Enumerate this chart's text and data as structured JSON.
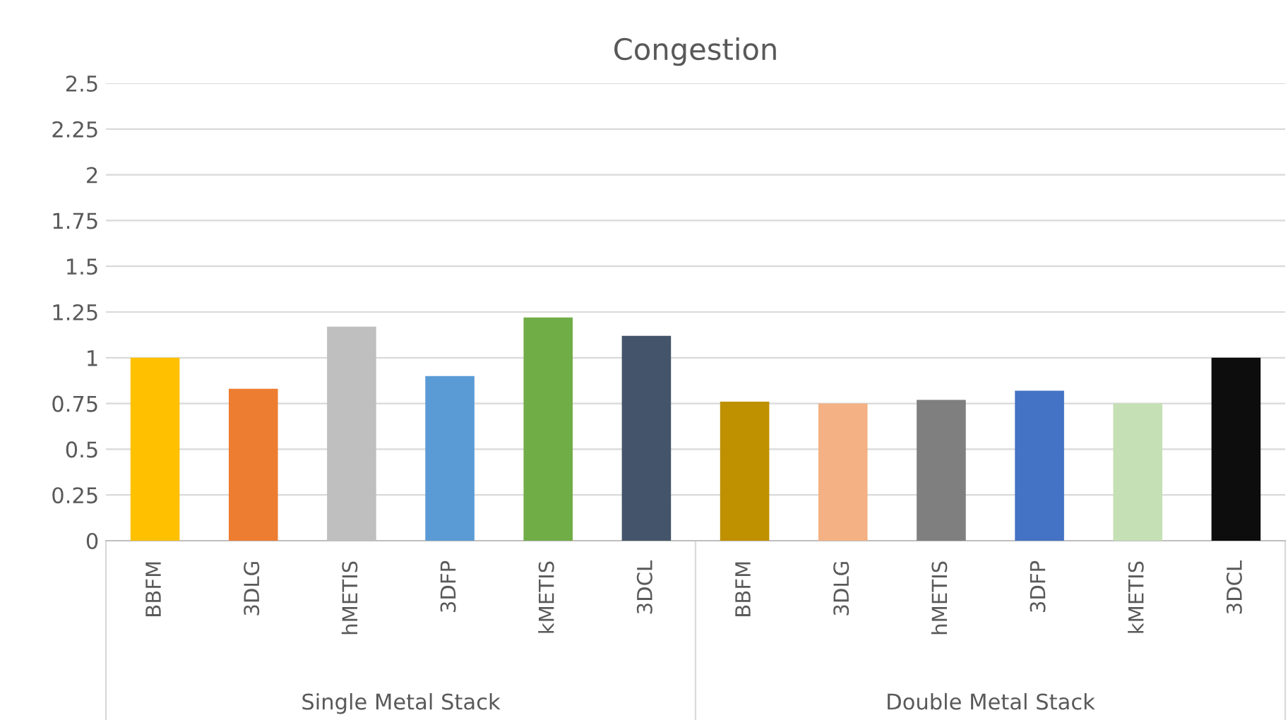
{
  "chart_data": {
    "type": "bar",
    "title": "Congestion",
    "categories": [
      "BBFM",
      "3DLG",
      "hMETIS",
      "3DFP",
      "kMETIS",
      "3DCL",
      "BBFM",
      "3DLG",
      "hMETIS",
      "3DFP",
      "kMETIS",
      "3DCL"
    ],
    "values": [
      1.0,
      0.83,
      1.17,
      0.9,
      1.22,
      1.12,
      0.76,
      0.75,
      0.77,
      0.82,
      0.75,
      1.0
    ],
    "colors": [
      "#ffc000",
      "#ed7d31",
      "#bfbfbf",
      "#5b9bd5",
      "#70ad47",
      "#44546a",
      "#bf9000",
      "#f4b183",
      "#7f7f7f",
      "#4472c4",
      "#c5e0b4",
      "#0d0d0d"
    ],
    "annotations": [
      "Single Metal Stack",
      "Double Metal Stack"
    ],
    "ylim": [
      0,
      2.5
    ],
    "yticks": [
      0,
      0.25,
      0.5,
      0.75,
      1,
      1.25,
      1.5,
      1.75,
      2,
      2.25,
      2.5
    ],
    "grid": "y"
  }
}
